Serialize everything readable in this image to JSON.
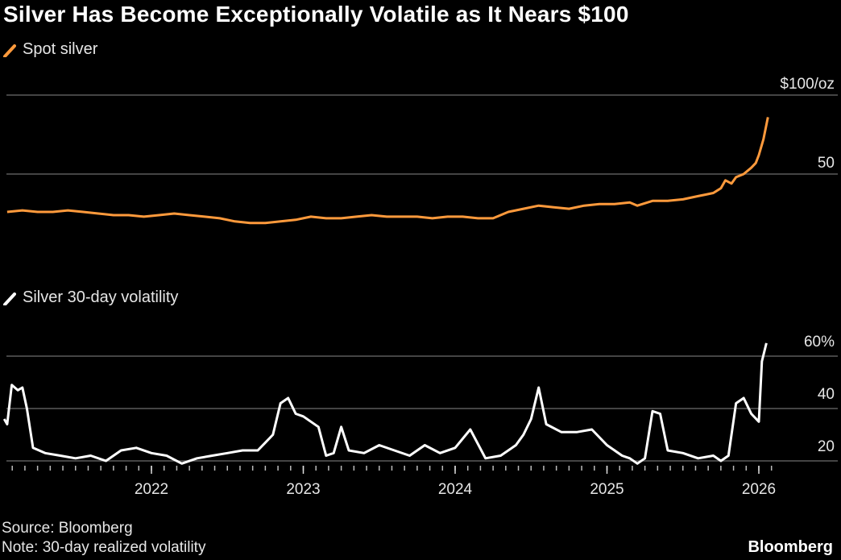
{
  "header": {
    "title": "Silver Has Become Exceptionally Volatile as It Nears $100"
  },
  "footer": {
    "source": "Source: Bloomberg",
    "note": "Note: 30-day realized volatility",
    "brand": "Bloomberg"
  },
  "colors": {
    "background": "#000000",
    "spot": "#ff9a3c",
    "volatility": "#ffffff",
    "grid": "#5a5a5a"
  },
  "chart_data": [
    {
      "type": "line",
      "legend": "Spot silver",
      "y_tick_labels": [
        "$100/oz",
        "50"
      ],
      "y_ticks": [
        100,
        50
      ],
      "ylim": [
        0,
        100
      ],
      "grid": true,
      "x_range": [
        2021.05,
        2026.1
      ],
      "series": [
        {
          "x": [
            2021.05,
            2021.15,
            2021.25,
            2021.35,
            2021.45,
            2021.55,
            2021.65,
            2021.75,
            2021.85,
            2021.95,
            2022.05,
            2022.15,
            2022.25,
            2022.35,
            2022.45,
            2022.55,
            2022.65,
            2022.75,
            2022.85,
            2022.95,
            2023.05,
            2023.15,
            2023.25,
            2023.35,
            2023.45,
            2023.55,
            2023.65,
            2023.75,
            2023.85,
            2023.95,
            2024.05,
            2024.15,
            2024.25,
            2024.35,
            2024.45,
            2024.55,
            2024.65,
            2024.75,
            2024.85,
            2024.95,
            2025.05,
            2025.15,
            2025.2,
            2025.3,
            2025.4,
            2025.5,
            2025.6,
            2025.65,
            2025.7,
            2025.75,
            2025.78,
            2025.82,
            2025.85,
            2025.9,
            2025.95,
            2025.98,
            2026.0,
            2026.03,
            2026.06
          ],
          "values": [
            26,
            27,
            26,
            26,
            27,
            26,
            25,
            24,
            24,
            23,
            24,
            25,
            24,
            23,
            22,
            20,
            19,
            19,
            20,
            21,
            23,
            22,
            22,
            23,
            24,
            23,
            23,
            23,
            22,
            23,
            23,
            22,
            22,
            26,
            28,
            30,
            29,
            28,
            30,
            31,
            31,
            32,
            30,
            33,
            33,
            34,
            36,
            37,
            38,
            41,
            46,
            44,
            48,
            50,
            54,
            57,
            62,
            72,
            86
          ]
        }
      ]
    },
    {
      "type": "line",
      "legend": "Silver 30-day volatility",
      "y_tick_labels": [
        "60%",
        "40",
        "20"
      ],
      "y_ticks": [
        60,
        40,
        20
      ],
      "ylim": [
        20,
        60
      ],
      "grid": true,
      "x_tick_labels": [
        "2022",
        "2023",
        "2024",
        "2025",
        "2026"
      ],
      "x_ticks": [
        2022,
        2023,
        2024,
        2025,
        2026
      ],
      "x_range": [
        2021.05,
        2026.1
      ],
      "series": [
        {
          "x": [
            2021.03,
            2021.05,
            2021.08,
            2021.12,
            2021.15,
            2021.18,
            2021.22,
            2021.3,
            2021.4,
            2021.5,
            2021.6,
            2021.7,
            2021.8,
            2021.9,
            2022.0,
            2022.1,
            2022.2,
            2022.3,
            2022.4,
            2022.5,
            2022.6,
            2022.7,
            2022.75,
            2022.8,
            2022.85,
            2022.9,
            2022.95,
            2023.0,
            2023.05,
            2023.1,
            2023.15,
            2023.2,
            2023.25,
            2023.3,
            2023.4,
            2023.5,
            2023.6,
            2023.7,
            2023.8,
            2023.9,
            2024.0,
            2024.1,
            2024.2,
            2024.3,
            2024.4,
            2024.45,
            2024.5,
            2024.55,
            2024.6,
            2024.7,
            2024.8,
            2024.9,
            2025.0,
            2025.1,
            2025.15,
            2025.2,
            2025.25,
            2025.3,
            2025.35,
            2025.4,
            2025.5,
            2025.6,
            2025.7,
            2025.75,
            2025.8,
            2025.85,
            2025.9,
            2025.95,
            2026.0,
            2026.02,
            2026.05
          ],
          "values": [
            36,
            34,
            49,
            47,
            48,
            40,
            25,
            23,
            22,
            21,
            22,
            20,
            24,
            25,
            23,
            22,
            19,
            21,
            22,
            23,
            24,
            24,
            27,
            30,
            42,
            44,
            38,
            37,
            35,
            33,
            22,
            23,
            33,
            24,
            23,
            26,
            24,
            22,
            26,
            23,
            25,
            32,
            21,
            22,
            26,
            30,
            36,
            48,
            34,
            31,
            31,
            32,
            26,
            22,
            21,
            19,
            21,
            39,
            38,
            24,
            23,
            21,
            22,
            20,
            22,
            42,
            44,
            38,
            35,
            58,
            65
          ]
        }
      ]
    }
  ]
}
